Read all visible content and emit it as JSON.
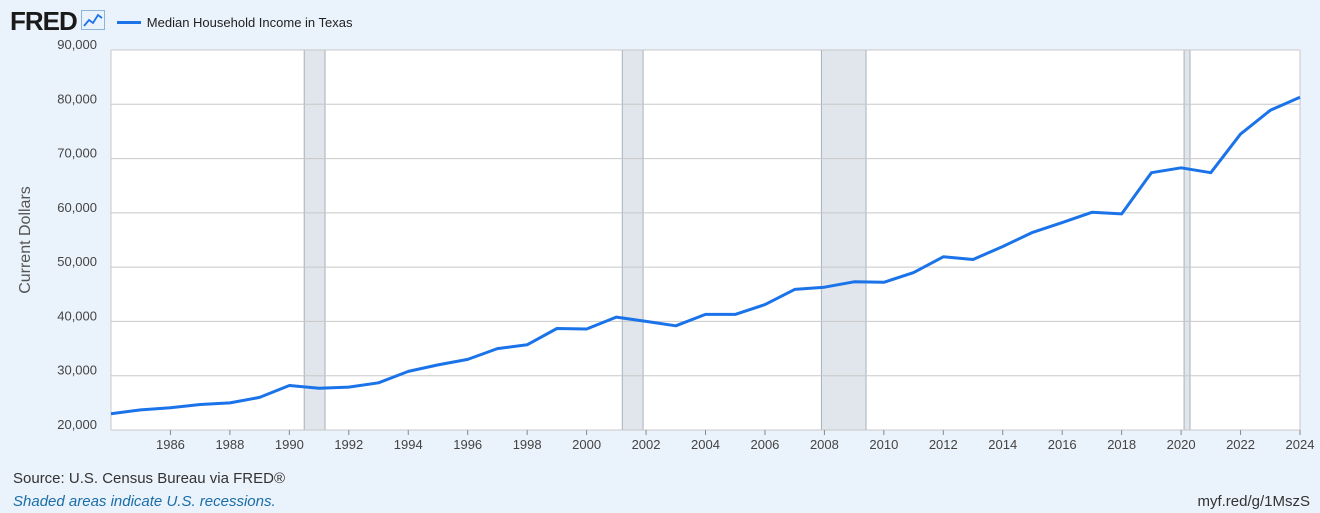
{
  "header": {
    "logo": "FRED",
    "logo_icon": "line-chart-icon"
  },
  "colors": {
    "series": "#1a73e8",
    "recession": "#e1e6ec",
    "grid": "#c8c8c8",
    "plot_bg": "#ffffff",
    "page_bg": "#eaf2fb"
  },
  "chart_data": {
    "type": "line",
    "title": "",
    "xlabel": "",
    "ylabel": "Current Dollars",
    "xlim": [
      1984,
      2024
    ],
    "ylim": [
      20000,
      90000
    ],
    "grid": true,
    "legend_position": "top-left",
    "x_ticks": [
      1986,
      1988,
      1990,
      1992,
      1994,
      1996,
      1998,
      2000,
      2002,
      2004,
      2006,
      2008,
      2010,
      2012,
      2014,
      2016,
      2018,
      2020,
      2022,
      2024
    ],
    "x_tick_labels": [
      "1986",
      "1988",
      "1990",
      "1992",
      "1994",
      "1996",
      "1998",
      "2000",
      "2002",
      "2004",
      "2006",
      "2008",
      "2010",
      "2012",
      "2014",
      "2016",
      "2018",
      "2020",
      "2022",
      "2024"
    ],
    "y_ticks": [
      20000,
      30000,
      40000,
      50000,
      60000,
      70000,
      80000,
      90000
    ],
    "y_tick_labels": [
      "20,000",
      "30,000",
      "40,000",
      "50,000",
      "60,000",
      "70,000",
      "80,000",
      "90,000"
    ],
    "recessions": [
      [
        1990.5,
        1991.2
      ],
      [
        2001.2,
        2001.9
      ],
      [
        2007.9,
        2009.4
      ],
      [
        2020.1,
        2020.3
      ]
    ],
    "series": [
      {
        "name": "Median Household Income in Texas",
        "x": [
          1984,
          1985,
          1986,
          1987,
          1988,
          1989,
          1990,
          1991,
          1992,
          1993,
          1994,
          1995,
          1996,
          1997,
          1998,
          1999,
          2000,
          2001,
          2002,
          2003,
          2004,
          2005,
          2006,
          2007,
          2008,
          2009,
          2010,
          2011,
          2012,
          2013,
          2014,
          2015,
          2016,
          2017,
          2018,
          2019,
          2020,
          2021,
          2022,
          2023,
          2024
        ],
        "values": [
          23000,
          23700,
          24100,
          24700,
          25000,
          26000,
          28200,
          27700,
          27900,
          28700,
          30800,
          32000,
          33000,
          35000,
          35700,
          38700,
          38600,
          40800,
          40000,
          39200,
          41300,
          41300,
          43100,
          45900,
          46300,
          47300,
          47200,
          49000,
          51900,
          51400,
          53800,
          56400,
          58200,
          60100,
          59800,
          67400,
          68300,
          67400,
          74500,
          78900,
          81300
        ]
      }
    ]
  },
  "footer": {
    "source": "Source: U.S. Census Bureau via FRED®",
    "note": "Shaded areas indicate U.S. recessions.",
    "link": "myf.red/g/1MszS"
  }
}
